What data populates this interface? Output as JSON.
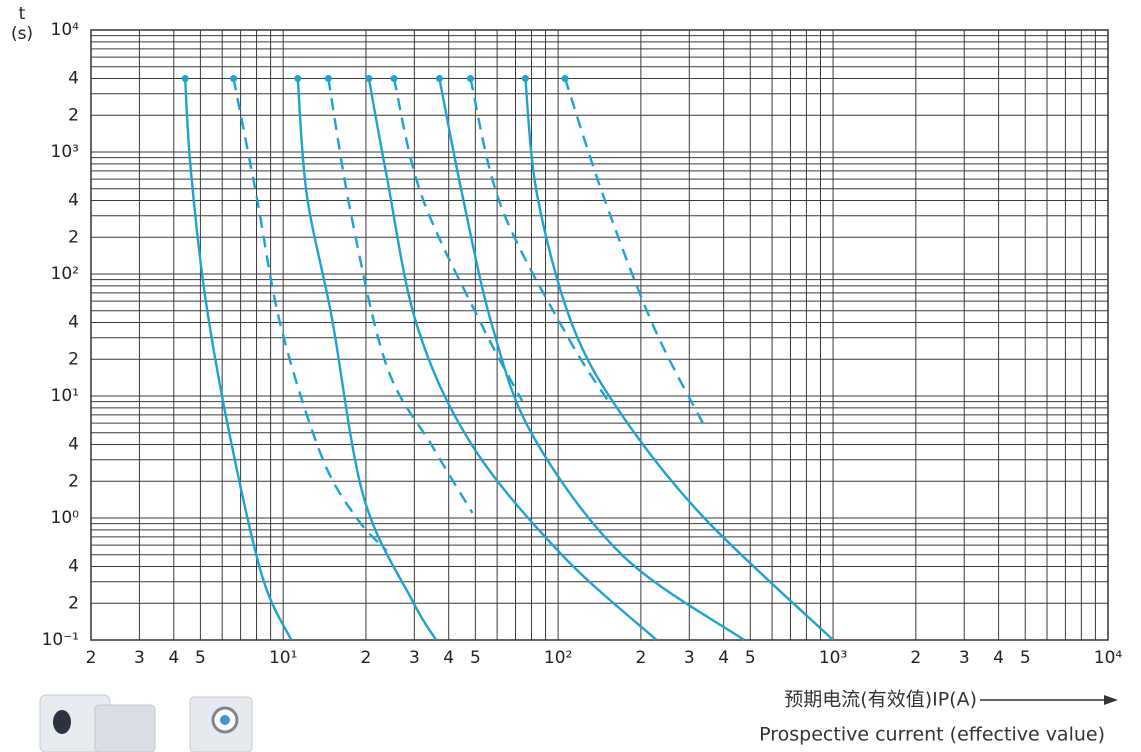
{
  "chart_data": {
    "type": "line",
    "ylabel_lines": [
      "t",
      "(s)"
    ],
    "xlabel_lines": [
      "预期电流(有效值)IP(A)",
      "Prospective current (effective value)"
    ],
    "xlog": true,
    "ylog": true,
    "grid": true,
    "xlim": [
      2,
      10000
    ],
    "ylim": [
      0.1,
      10000
    ],
    "xticks": [
      2,
      3,
      4,
      5,
      {
        "value": 10,
        "label": "10¹"
      },
      {
        "value": 20,
        "label": "2"
      },
      {
        "value": 30,
        "label": "3"
      },
      {
        "value": 40,
        "label": "4"
      },
      {
        "value": 50,
        "label": "5"
      },
      {
        "value": 100,
        "label": "10²"
      },
      {
        "value": 200,
        "label": "2"
      },
      {
        "value": 300,
        "label": "3"
      },
      {
        "value": 400,
        "label": "4"
      },
      {
        "value": 500,
        "label": "5"
      },
      {
        "value": 1000,
        "label": "10³"
      },
      {
        "value": 2000,
        "label": "2"
      },
      {
        "value": 3000,
        "label": "3"
      },
      {
        "value": 4000,
        "label": "4"
      },
      {
        "value": 5000,
        "label": "5"
      },
      {
        "value": 10000,
        "label": "10⁴"
      }
    ],
    "yticks": [
      {
        "value": 0.1,
        "label": "10⁻¹"
      },
      {
        "value": 0.2,
        "label": "2"
      },
      {
        "value": 0.4,
        "label": "4"
      },
      {
        "value": 1,
        "label": "10⁰"
      },
      2,
      4,
      {
        "value": 10,
        "label": "10¹"
      },
      {
        "value": 20,
        "label": "2"
      },
      {
        "value": 40,
        "label": "4"
      },
      {
        "value": 100,
        "label": "10²"
      },
      {
        "value": 200,
        "label": "2"
      },
      {
        "value": 400,
        "label": "4"
      },
      {
        "value": 1000,
        "label": "10³"
      },
      {
        "value": 2000,
        "label": "2"
      },
      {
        "value": 4000,
        "label": "4"
      },
      {
        "value": 10000,
        "label": "10⁴"
      }
    ],
    "minor_xticks": [
      6,
      7,
      8,
      9,
      60,
      70,
      80,
      90,
      600,
      700,
      800,
      900,
      6000,
      7000,
      8000,
      9000
    ],
    "minor_yticks": [
      0.3,
      0.5,
      0.6,
      0.7,
      0.8,
      0.9,
      3,
      5,
      6,
      7,
      8,
      9,
      30,
      50,
      60,
      70,
      80,
      90,
      300,
      500,
      600,
      700,
      800,
      900,
      3000,
      5000,
      6000,
      7000,
      8000,
      9000
    ],
    "series": [
      {
        "color": "#1ea3d0",
        "dashed": false,
        "x": [
          4.4,
          4.6,
          5.2,
          6.4,
          8.4,
          10.7
        ],
        "values": [
          4000,
          770,
          66,
          4.7,
          0.33,
          0.1
        ]
      },
      {
        "color": "#1ea3d0",
        "dashed": true,
        "x": [
          6.6,
          8,
          9.8,
          13.8,
          18.5,
          23.8
        ],
        "values": [
          4000,
          437,
          37.5,
          3.2,
          1,
          0.54
        ]
      },
      {
        "color": "#1ea3d0",
        "dashed": false,
        "x": [
          11.3,
          12.2,
          15,
          19.6,
          29.5,
          36
        ],
        "values": [
          4000,
          437,
          45,
          1.5,
          0.21,
          0.1
        ]
      },
      {
        "color": "#1ea3d0",
        "dashed": true,
        "x": [
          14.6,
          17.7,
          23.8,
          34.8,
          48.8
        ],
        "values": [
          4000,
          300,
          17.6,
          3.9,
          1.1
        ]
      },
      {
        "color": "#1ea3d0",
        "dashed": false,
        "x": [
          20.5,
          23.8,
          30.7,
          48.8,
          104,
          228
        ],
        "values": [
          4000,
          635,
          37.5,
          3.9,
          0.49,
          0.1
        ]
      },
      {
        "color": "#1ea3d0",
        "dashed": true,
        "x": [
          25.3,
          31.9,
          53,
          74
        ],
        "values": [
          4000,
          437,
          37.5,
          9.1
        ]
      },
      {
        "color": "#1ea3d0",
        "dashed": false,
        "x": [
          37,
          44.9,
          57.6,
          81,
          172,
          475
        ],
        "values": [
          4000,
          437,
          37.5,
          4.7,
          0.49,
          0.1
        ]
      },
      {
        "color": "#1ea3d0",
        "dashed": true,
        "x": [
          48,
          62,
          108,
          152
        ],
        "values": [
          4000,
          360,
          31,
          9.1
        ]
      },
      {
        "color": "#1ea3d0",
        "dashed": false,
        "x": [
          76,
          84,
          113,
          172,
          340,
          1000
        ],
        "values": [
          4000,
          437,
          37.5,
          6.8,
          1,
          0.1
        ]
      },
      {
        "color": "#1ea3d0",
        "dashed": true,
        "x": [
          106,
          146,
          222,
          340
        ],
        "values": [
          4000,
          437,
          37.5,
          5.7
        ]
      }
    ]
  }
}
